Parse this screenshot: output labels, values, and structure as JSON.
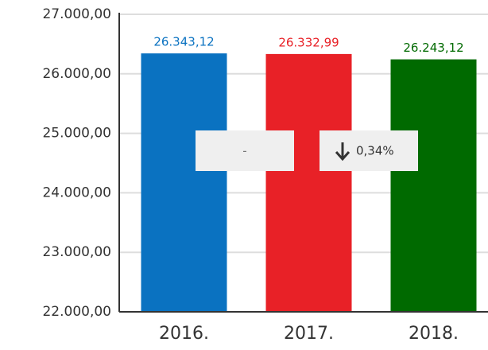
{
  "chart_data": {
    "type": "bar",
    "categories": [
      "2016.",
      "2017.",
      "2018."
    ],
    "values": [
      26343.12,
      26332.99,
      26243.12
    ],
    "value_labels": [
      "26.343,12",
      "26.332,99",
      "26.243,12"
    ],
    "colors": [
      "#0a72c1",
      "#e82127",
      "#006a00"
    ],
    "ylim": [
      22000,
      27000
    ],
    "yticks": [
      {
        "value": 22000,
        "label": "22.000,00"
      },
      {
        "value": 23000,
        "label": "23.000,00"
      },
      {
        "value": 24000,
        "label": "24.000,00"
      },
      {
        "value": 25000,
        "label": "25.000,00"
      },
      {
        "value": 26000,
        "label": "26.000,00"
      },
      {
        "value": 27000,
        "label": "27.000,00"
      }
    ],
    "grid": true,
    "annotations": [
      "-",
      "0,34%"
    ]
  }
}
